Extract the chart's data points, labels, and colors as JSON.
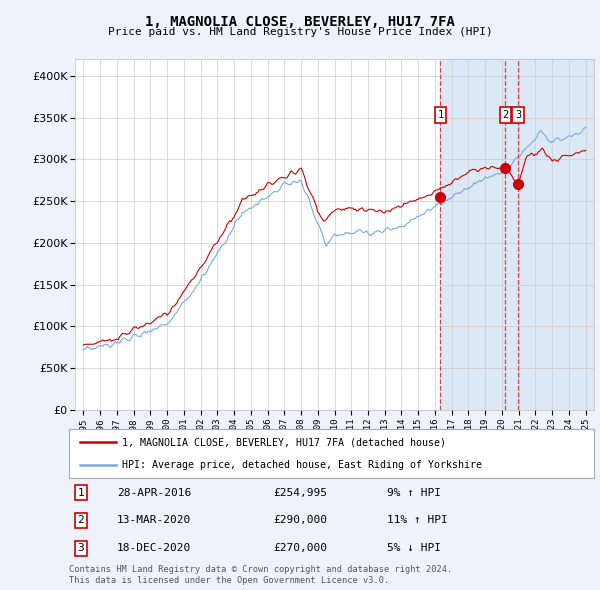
{
  "title": "1, MAGNOLIA CLOSE, BEVERLEY, HU17 7FA",
  "subtitle": "Price paid vs. HM Land Registry's House Price Index (HPI)",
  "legend_line1": "1, MAGNOLIA CLOSE, BEVERLEY, HU17 7FA (detached house)",
  "legend_line2": "HPI: Average price, detached house, East Riding of Yorkshire",
  "transactions": [
    {
      "num": 1,
      "date": "28-APR-2016",
      "price": "£254,995",
      "pct": "9%",
      "dir": "↑",
      "x_year": 2016.33
    },
    {
      "num": 2,
      "date": "13-MAR-2020",
      "price": "£290,000",
      "pct": "11%",
      "dir": "↑",
      "x_year": 2020.2
    },
    {
      "num": 3,
      "date": "18-DEC-2020",
      "price": "£270,000",
      "pct": "5%",
      "dir": "↓",
      "x_year": 2020.96
    }
  ],
  "transaction_prices": [
    254995,
    290000,
    270000
  ],
  "footnote1": "Contains HM Land Registry data © Crown copyright and database right 2024.",
  "footnote2": "This data is licensed under the Open Government Licence v3.0.",
  "red_color": "#cc0000",
  "blue_color": "#7aaadd",
  "shade_color": "#dce8f5",
  "background_color": "#eef3fb",
  "plot_bg": "#ffffff",
  "ylim": [
    0,
    420000
  ],
  "xlim": [
    1994.5,
    2025.5
  ]
}
